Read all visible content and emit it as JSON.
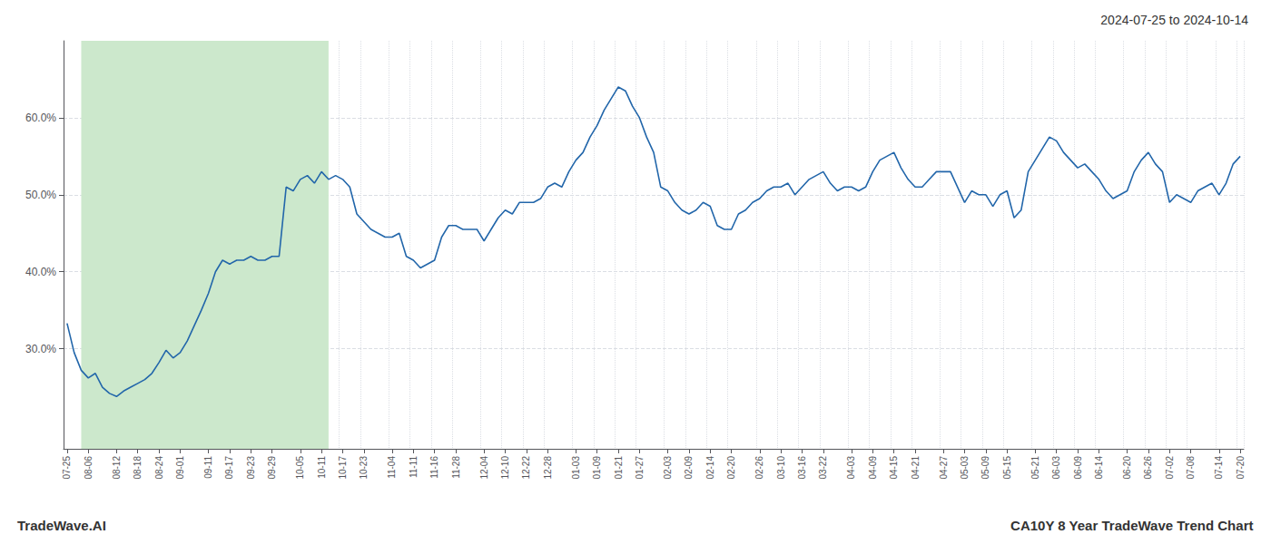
{
  "chart_data": {
    "type": "line",
    "title": "2024-07-25 to 2024-10-14",
    "annotations": [
      "TradeWave.AI",
      "CA10Y 8 Year TradeWave Trend Chart"
    ],
    "color": "#2266aa",
    "grid": true,
    "shade": {
      "start": 2,
      "end": 37,
      "color": "#cce8cc"
    },
    "ylim": [
      0.17,
      0.7
    ],
    "yticks": [
      {
        "value": 0.3,
        "label": "30.0%"
      },
      {
        "value": 0.4,
        "label": "40.0%"
      },
      {
        "value": 0.5,
        "label": "50.0%"
      },
      {
        "value": 0.6,
        "label": "60.0%"
      }
    ],
    "categories": [
      "07-25",
      null,
      null,
      "08-06",
      null,
      null,
      null,
      "08-12",
      null,
      null,
      "08-18",
      null,
      null,
      "08-24",
      null,
      null,
      "09-01",
      null,
      null,
      null,
      "09-11",
      null,
      null,
      "09-17",
      null,
      null,
      "09-23",
      null,
      null,
      "09-29",
      null,
      null,
      null,
      "10-05",
      null,
      null,
      "10-11",
      null,
      null,
      "10-17",
      null,
      null,
      "10-23",
      null,
      null,
      null,
      "11-04",
      null,
      null,
      "11-11",
      null,
      null,
      "11-16",
      null,
      null,
      "11-28",
      null,
      null,
      null,
      "12-04",
      null,
      null,
      "12-10",
      null,
      null,
      "12-22",
      null,
      null,
      "12-28",
      null,
      null,
      null,
      "01-03",
      null,
      null,
      "01-09",
      null,
      null,
      "01-21",
      null,
      null,
      "01-27",
      null,
      null,
      null,
      "02-03",
      null,
      null,
      "02-09",
      null,
      null,
      "02-14",
      null,
      null,
      "02-20",
      null,
      null,
      null,
      "02-26",
      null,
      null,
      "03-10",
      null,
      null,
      "03-16",
      null,
      null,
      "03-22",
      null,
      null,
      null,
      "04-03",
      null,
      null,
      "04-09",
      null,
      null,
      "04-15",
      null,
      null,
      "04-21",
      null,
      null,
      null,
      "04-27",
      null,
      null,
      "05-03",
      null,
      null,
      "05-09",
      null,
      null,
      "05-15",
      null,
      null,
      null,
      "05-21",
      null,
      null,
      "06-03",
      null,
      null,
      "06-09",
      null,
      null,
      "06-14",
      null,
      null,
      null,
      "06-20",
      null,
      null,
      "06-26",
      null,
      null,
      "07-02",
      null,
      null,
      "07-08",
      null,
      null,
      null,
      "07-14",
      null,
      null,
      "07-20"
    ],
    "values": [
      0.333,
      0.295,
      0.272,
      0.262,
      0.268,
      0.25,
      0.242,
      0.238,
      0.245,
      0.25,
      0.255,
      0.26,
      0.268,
      0.282,
      0.298,
      0.288,
      0.295,
      0.31,
      0.33,
      0.35,
      0.372,
      0.4,
      0.415,
      0.41,
      0.415,
      0.415,
      0.42,
      0.415,
      0.415,
      0.42,
      0.42,
      0.51,
      0.505,
      0.52,
      0.525,
      0.515,
      0.53,
      0.52,
      0.525,
      0.52,
      0.51,
      0.475,
      0.465,
      0.455,
      0.45,
      0.445,
      0.445,
      0.45,
      0.42,
      0.415,
      0.405,
      0.41,
      0.415,
      0.445,
      0.46,
      0.46,
      0.455,
      0.455,
      0.455,
      0.44,
      0.455,
      0.47,
      0.48,
      0.475,
      0.49,
      0.49,
      0.49,
      0.495,
      0.51,
      0.515,
      0.51,
      0.53,
      0.545,
      0.555,
      0.575,
      0.59,
      0.61,
      0.625,
      0.64,
      0.635,
      0.615,
      0.6,
      0.575,
      0.555,
      0.51,
      0.505,
      0.49,
      0.48,
      0.475,
      0.48,
      0.49,
      0.485,
      0.46,
      0.455,
      0.455,
      0.475,
      0.48,
      0.49,
      0.495,
      0.505,
      0.51,
      0.51,
      0.515,
      0.5,
      0.51,
      0.52,
      0.525,
      0.53,
      0.515,
      0.505,
      0.51,
      0.51,
      0.505,
      0.51,
      0.53,
      0.545,
      0.55,
      0.555,
      0.535,
      0.52,
      0.51,
      0.51,
      0.52,
      0.53,
      0.53,
      0.53,
      0.51,
      0.49,
      0.505,
      0.5,
      0.5,
      0.485,
      0.5,
      0.505,
      0.47,
      0.48,
      0.53,
      0.545,
      0.56,
      0.575,
      0.57,
      0.555,
      0.545,
      0.535,
      0.54,
      0.53,
      0.52,
      0.505,
      0.495,
      0.5,
      0.505,
      0.53,
      0.545,
      0.555,
      0.54,
      0.53,
      0.49,
      0.5,
      0.495,
      0.49,
      0.505,
      0.51,
      0.515,
      0.5,
      0.515,
      0.54,
      0.55
    ]
  }
}
